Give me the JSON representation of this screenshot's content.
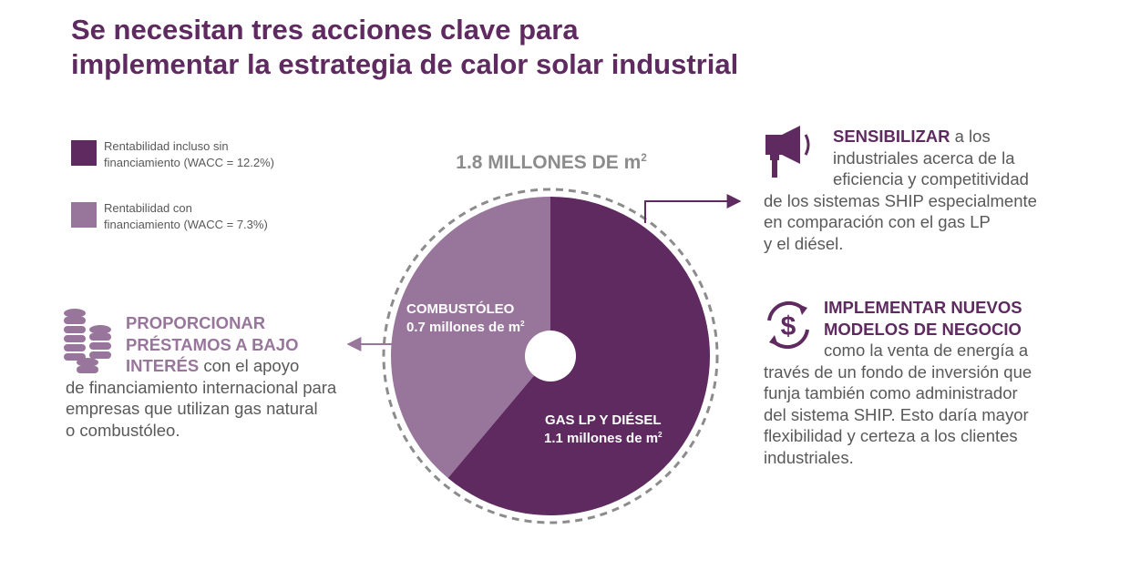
{
  "title": {
    "line1": "Se necesitan tres acciones clave para",
    "line2": "implementar la estrategia de calor solar industrial"
  },
  "legend": [
    {
      "line1": "Rentabilidad incluso sin",
      "line2": "financiamiento (WACC = 12.2%)",
      "color": "#5e2a60"
    },
    {
      "line1": "Rentabilidad con",
      "line2": "financiamiento (WACC = 7.3%)",
      "color": "#98769b"
    }
  ],
  "chart_data": {
    "type": "pie",
    "donut_hole": true,
    "total_label": {
      "text": "1.8 MILLONES DE  m",
      "superscript": "2"
    },
    "slices": [
      {
        "name": "GAS LP Y DIÉSEL",
        "value": 1.1,
        "value_label": "1.1 millones de m",
        "superscript": "2",
        "color": "#5e2a60"
      },
      {
        "name": "COMBUSTÓLEO",
        "value": 0.7,
        "value_label": "0.7 millones de  m",
        "superscript": "2",
        "color": "#98769b"
      }
    ]
  },
  "actions": {
    "sensibilizar": {
      "heading": "SENSIBILIZAR",
      "lines": [
        " a los",
        "industriales acerca de la",
        "eficiencia y competitividad",
        "de los sistemas SHIP especialmente",
        "en comparación con el gas LP",
        "y el diésel."
      ],
      "icon": "megaphone-icon"
    },
    "implementar": {
      "heading_line1": "IMPLEMENTAR NUEVOS",
      "heading_line2": "MODELOS DE NEGOCIO",
      "lines": [
        "como la venta de energía a",
        "través de un fondo de inversión que",
        "funja también como administrador",
        "del sistema SHIP. Esto daría mayor",
        "flexibilidad y certeza a los clientes",
        "industriales."
      ],
      "icon": "dollar-cycle-icon"
    },
    "proporcionar": {
      "heading_line1": "PROPORCIONAR",
      "heading_line2": "PRÉSTAMOS A BAJO",
      "heading_line3": "INTERÉS",
      "lines": [
        " con el apoyo",
        "de financiamiento internacional para",
        "empresas que utilizan gas natural",
        "o combustóleo."
      ],
      "icon": "coins-stack-icon"
    }
  }
}
